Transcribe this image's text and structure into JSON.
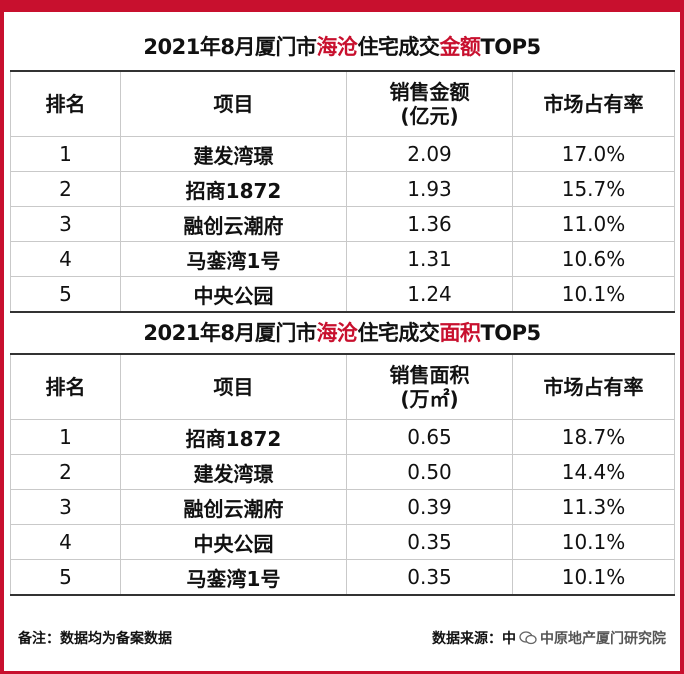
{
  "colors": {
    "accent": "#c8102e",
    "border": "#c9c9c9"
  },
  "sections": [
    {
      "title_prefix": "2021年8月厦门市",
      "title_red1": "海沧",
      "title_mid": "住宅成交",
      "title_red2": "金额",
      "title_suffix": "TOP5",
      "headers": {
        "rank": "排名",
        "project": "项目",
        "metric_line1": "销售金额",
        "metric_line2": "(亿元)",
        "share": "市场占有率"
      },
      "rows": [
        {
          "rank": "1",
          "project": "建发湾璟",
          "value": "2.09",
          "share": "17.0%"
        },
        {
          "rank": "2",
          "project": "招商1872",
          "value": "1.93",
          "share": "15.7%"
        },
        {
          "rank": "3",
          "project": "融创云潮府",
          "value": "1.36",
          "share": "11.0%"
        },
        {
          "rank": "4",
          "project": "马銮湾1号",
          "value": "1.31",
          "share": "10.6%"
        },
        {
          "rank": "5",
          "project": "中央公园",
          "value": "1.24",
          "share": "10.1%"
        }
      ]
    },
    {
      "title_prefix": "2021年8月厦门市",
      "title_red1": "海沧",
      "title_mid": "住宅成交",
      "title_red2": "面积",
      "title_suffix": "TOP5",
      "headers": {
        "rank": "排名",
        "project": "项目",
        "metric_line1": "销售面积",
        "metric_line2": "(万㎡)",
        "share": "市场占有率"
      },
      "rows": [
        {
          "rank": "1",
          "project": "招商1872",
          "value": "0.65",
          "share": "18.7%"
        },
        {
          "rank": "2",
          "project": "建发湾璟",
          "value": "0.50",
          "share": "14.4%"
        },
        {
          "rank": "3",
          "project": "融创云潮府",
          "value": "0.39",
          "share": "11.3%"
        },
        {
          "rank": "4",
          "project": "中央公园",
          "value": "0.35",
          "share": "10.1%"
        },
        {
          "rank": "5",
          "project": "马銮湾1号",
          "value": "0.35",
          "share": "10.1%"
        }
      ]
    }
  ],
  "footer": {
    "note": "备注：数据均为备案数据",
    "source_label": "数据来源：中",
    "source_brand": "中原地产厦门研究院"
  }
}
